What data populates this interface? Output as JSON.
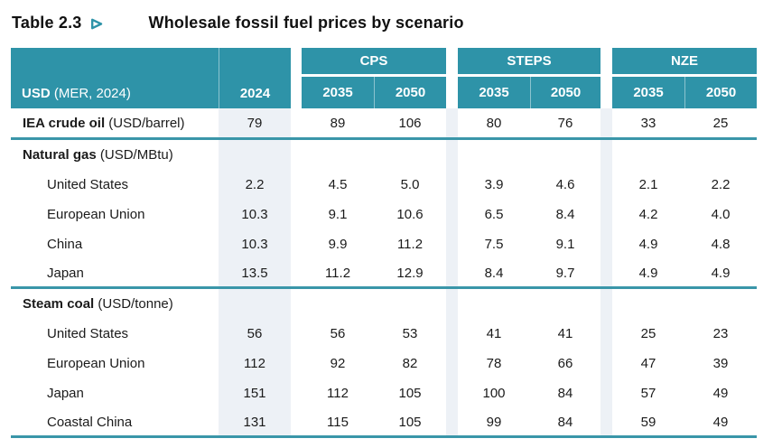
{
  "title": {
    "label": "Table 2.3",
    "arrow_icon": "teal-outline-right-triangle",
    "text": "Wholesale fossil fuel prices by scenario"
  },
  "colors": {
    "header_teal": "#2E93A8",
    "divider_teal": "#3A96A9",
    "band_shade": "#EDF1F6",
    "header_text": "#FFFFFF",
    "body_text": "#1B1B1B"
  },
  "table": {
    "unit_bold": "USD",
    "unit_rest": " (MER, 2024)",
    "base_year": "2024",
    "scenarios": [
      {
        "name": "CPS",
        "years": [
          "2035",
          "2050"
        ]
      },
      {
        "name": "STEPS",
        "years": [
          "2035",
          "2050"
        ]
      },
      {
        "name": "NZE",
        "years": [
          "2035",
          "2050"
        ]
      }
    ],
    "columns_order": [
      "2024",
      "CPS 2035",
      "CPS 2050",
      "STEPS 2035",
      "STEPS 2050",
      "NZE 2035",
      "NZE 2050"
    ],
    "rows": [
      {
        "bold": "IEA crude oil",
        "unit": "(USD/barrel)",
        "divider": true,
        "values": [
          "79",
          "89",
          "106",
          "80",
          "76",
          "33",
          "25"
        ]
      },
      {
        "bold": "Natural gas",
        "unit": "(USD/MBtu)",
        "section": true
      },
      {
        "label": "United States",
        "indent": true,
        "values": [
          "2.2",
          "4.5",
          "5.0",
          "3.9",
          "4.6",
          "2.1",
          "2.2"
        ]
      },
      {
        "label": "European Union",
        "indent": true,
        "values": [
          "10.3",
          "9.1",
          "10.6",
          "6.5",
          "8.4",
          "4.2",
          "4.0"
        ]
      },
      {
        "label": "China",
        "indent": true,
        "values": [
          "10.3",
          "9.9",
          "11.2",
          "7.5",
          "9.1",
          "4.9",
          "4.8"
        ]
      },
      {
        "label": "Japan",
        "indent": true,
        "divider": true,
        "values": [
          "13.5",
          "11.2",
          "12.9",
          "8.4",
          "9.7",
          "4.9",
          "4.9"
        ]
      },
      {
        "bold": "Steam coal",
        "unit": "(USD/tonne)",
        "section": true
      },
      {
        "label": "United States",
        "indent": true,
        "values": [
          "56",
          "56",
          "53",
          "41",
          "41",
          "25",
          "23"
        ]
      },
      {
        "label": "European Union",
        "indent": true,
        "values": [
          "112",
          "92",
          "82",
          "78",
          "66",
          "47",
          "39"
        ]
      },
      {
        "label": "Japan",
        "indent": true,
        "values": [
          "151",
          "112",
          "105",
          "100",
          "84",
          "57",
          "49"
        ]
      },
      {
        "label": "Coastal China",
        "indent": true,
        "divider": true,
        "values": [
          "131",
          "115",
          "105",
          "99",
          "84",
          "59",
          "49"
        ]
      }
    ]
  }
}
